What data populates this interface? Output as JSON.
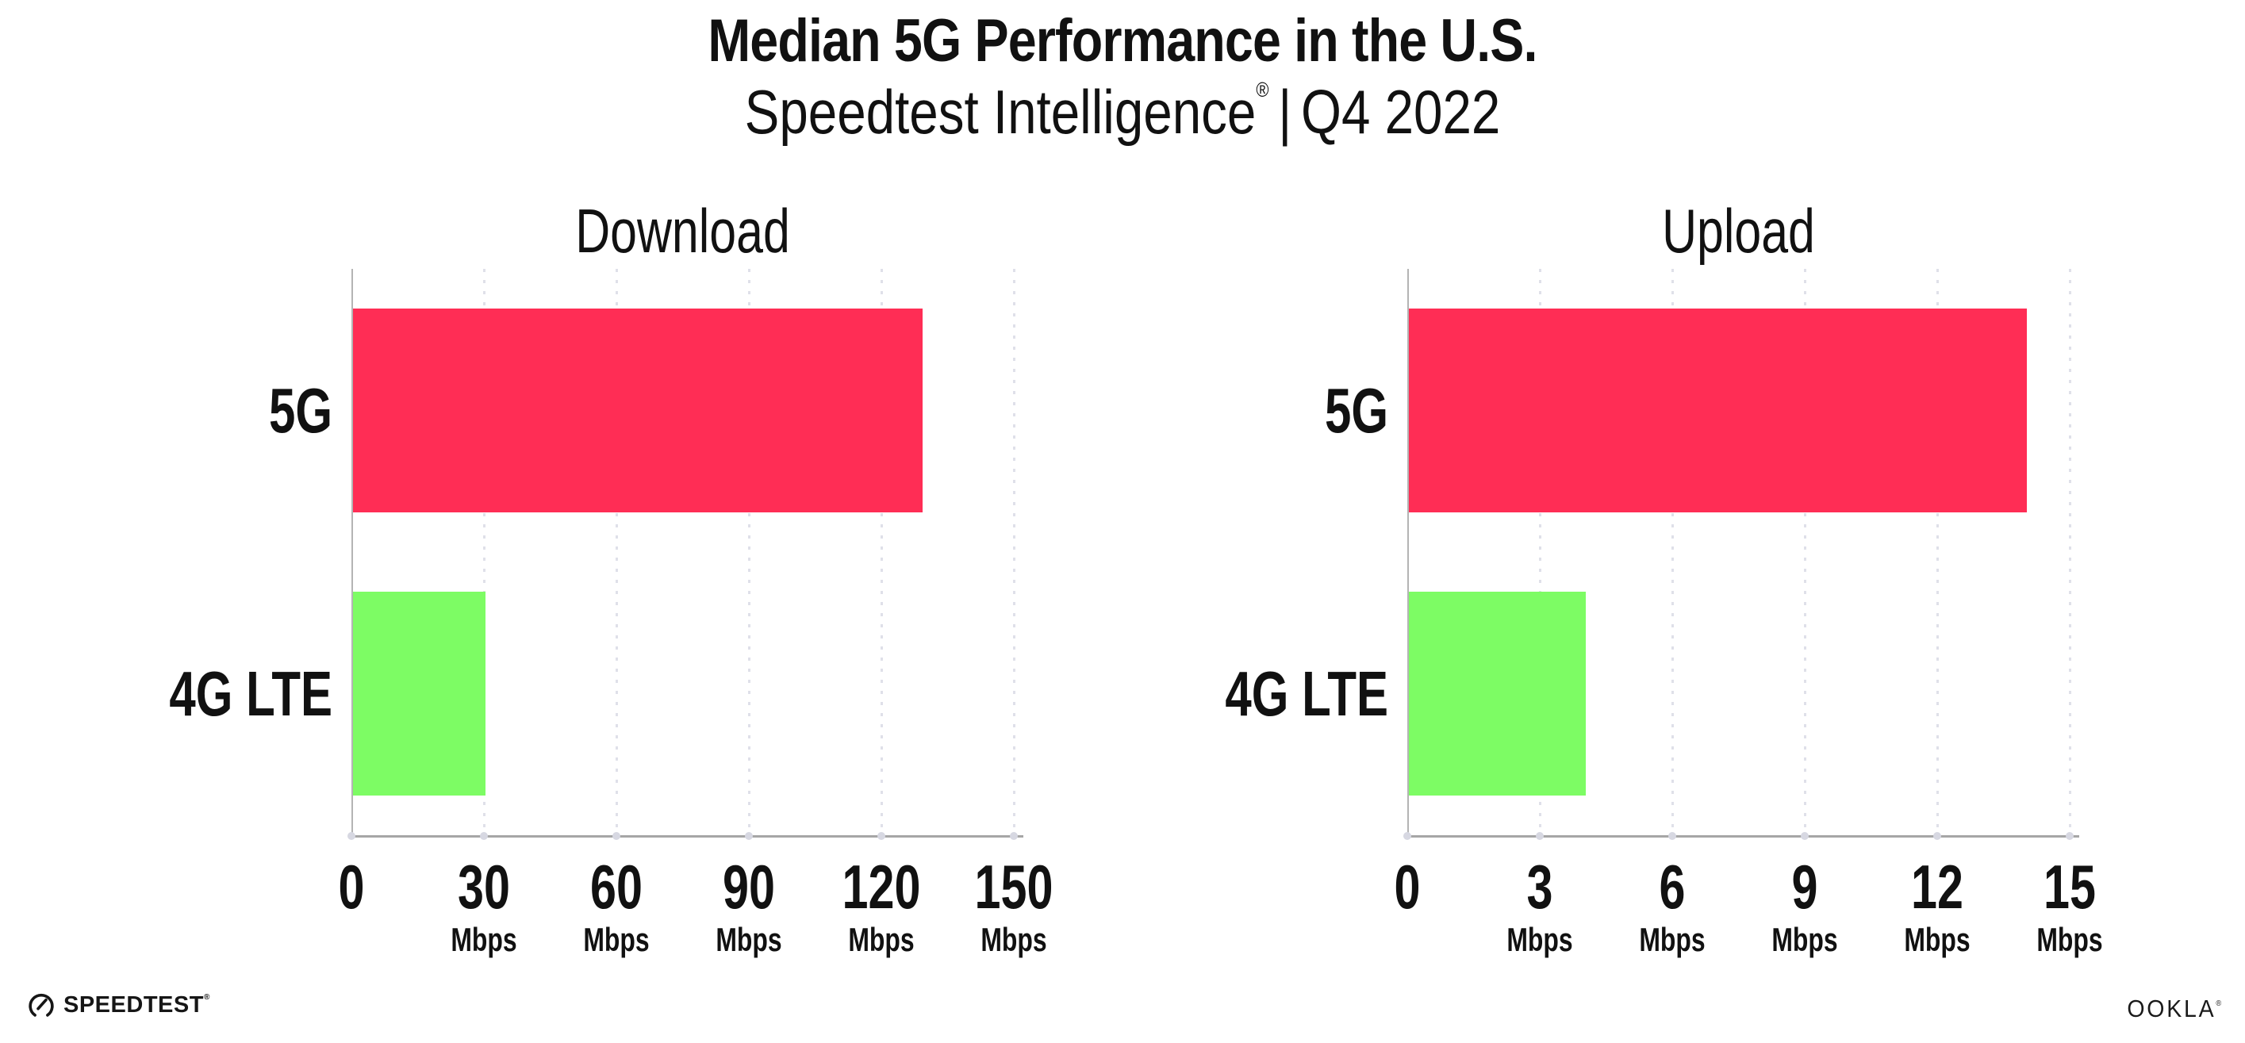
{
  "title": "Median 5G Performance in the U.S.",
  "subtitle": {
    "brand": "Speedtest Intelligence",
    "reg": "®",
    "separator": "|",
    "period": "Q4 2022"
  },
  "colors": {
    "bar_5g": "#FF2D55",
    "bar_4g_lte": "#7DFC64",
    "axis_line": "#a6a6a6",
    "axis_spine": "#b4b4b4",
    "gridline": "#dfe0e9",
    "text": "#111111"
  },
  "chart_data": [
    {
      "type": "bar",
      "orientation": "horizontal",
      "title": "Download",
      "categories": [
        "5G",
        "4G LTE"
      ],
      "values": [
        129,
        30
      ],
      "unit": "Mbps",
      "xlim": [
        0,
        150
      ],
      "xticks": [
        0,
        30,
        60,
        90,
        120,
        150
      ],
      "tick_unit_label": "Mbps",
      "grid": "vertical-dotted",
      "legend": "none",
      "bar_colors": [
        "#FF2D55",
        "#7DFC64"
      ]
    },
    {
      "type": "bar",
      "orientation": "horizontal",
      "title": "Upload",
      "categories": [
        "5G",
        "4G LTE"
      ],
      "values": [
        14,
        4
      ],
      "unit": "Mbps",
      "xlim": [
        0,
        15
      ],
      "xticks": [
        0,
        3,
        6,
        9,
        12,
        15
      ],
      "tick_unit_label": "Mbps",
      "grid": "vertical-dotted",
      "legend": "none",
      "bar_colors": [
        "#FF2D55",
        "#7DFC64"
      ]
    }
  ],
  "footer": {
    "speedtest_logo_text": "SPEEDTEST",
    "speedtest_reg": "®",
    "ookla_logo_text": "OOKLA",
    "ookla_reg": "®"
  }
}
